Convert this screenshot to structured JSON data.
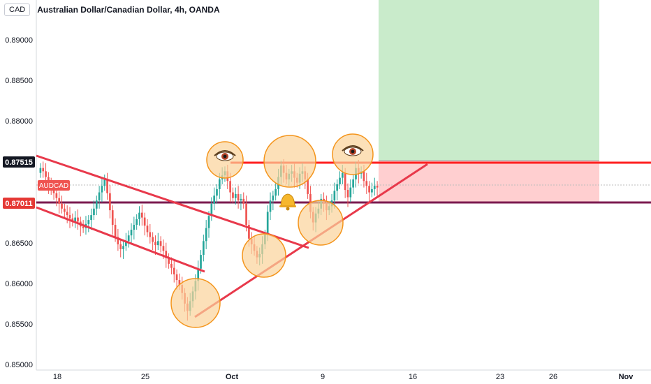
{
  "header": {
    "currency": "CAD",
    "title": "Australian Dollar/Canadian Dollar, 4h, OANDA"
  },
  "chart_data": {
    "type": "candlestick",
    "symbol": "AUDCAD",
    "ylim": [
      0.85,
      0.8925
    ],
    "yticks": [
      "0.89000",
      "0.88500",
      "0.88000",
      "0.86500",
      "0.86000",
      "0.85500",
      "0.85000"
    ],
    "xticks": [
      {
        "label": "18",
        "date": "2023-09-18"
      },
      {
        "label": "25",
        "date": "2023-09-25"
      },
      {
        "label": "Oct",
        "date": "2023-10-02"
      },
      {
        "label": "9",
        "date": "2023-10-09"
      },
      {
        "label": "16",
        "date": "2023-10-16"
      },
      {
        "label": "23",
        "date": "2023-10-23"
      },
      {
        "label": "26",
        "date": "2023-10-26"
      },
      {
        "label": "Nov",
        "date": "2023-11-01"
      }
    ],
    "price_labels": {
      "upper": "0.87515",
      "lower": "0.87011",
      "symbol_tag": "AUDCAD"
    },
    "levels": {
      "resistance": 0.87515,
      "support": 0.87011,
      "last": 0.8718
    },
    "target_zone": {
      "top": 0.8925,
      "bottom": 0.8752
    },
    "stop_zone": {
      "top": 0.8752,
      "bottom": 0.8701
    },
    "colors": {
      "up": "#26a69a",
      "down": "#ef5350",
      "trendline": "#e8394b",
      "resistance": "#ff1f1f",
      "support": "#7b1b50",
      "target": "#c9ebcb",
      "stop": "#ffcfd0",
      "circle_fill": "#fbd39a",
      "circle_stroke": "#f4951c"
    }
  }
}
